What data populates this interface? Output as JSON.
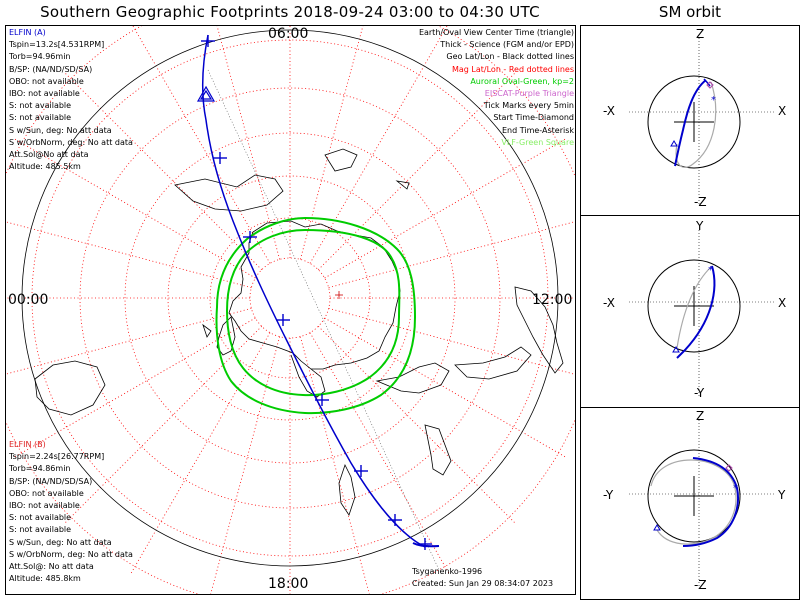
{
  "title": "Southern Geographic Footprints 2018-09-24 03:00 to 04:30 UTC",
  "orbit_title": "SM orbit",
  "hour_labels": {
    "top": "06:00",
    "left": "00:00",
    "right": "12:00",
    "bottom": "18:00"
  },
  "elfin_a": {
    "name": "ELFIN (A)",
    "lines": [
      "Tspin=13.2s[4.531RPM]",
      "Torb=94.96min",
      "B/SP: (NA/ND/SD/SA)",
      "OBO: not available",
      "IBO: not available",
      "S: not available",
      "S: not available",
      "S w/Sun, deg: No att data",
      "S w/OrbNorm, deg: No att data",
      "Att.Sol@No att data",
      "Altitude: 485.5km"
    ]
  },
  "elfin_b": {
    "name": "ELFIN (B)",
    "lines": [
      "Tspin=2.24s[26.77RPM]",
      "Torb=94.86min",
      "B/SP: (NA/ND/SD/SA)",
      "OBO: not available",
      "IBO: not available",
      "S: not available",
      "S: not available",
      "S w/Sun, deg: No att data",
      "S w/OrbNorm, deg: No att data",
      "Att.Sol@: No att data",
      "Altitude: 485.8km"
    ]
  },
  "legend": [
    {
      "text": "Earth/Oval View Center Time (triangle)",
      "color": "#000000"
    },
    {
      "text": "Thick - Science (FGM and/or EPD)",
      "color": "#000000"
    },
    {
      "text": "Geo Lat/Lon - Black dotted lines",
      "color": "#000000"
    },
    {
      "text": "Mag Lat/Lon - Red dotted lines",
      "color": "#ff0000"
    },
    {
      "text": "Auroral Oval-Green, kp=2",
      "color": "#00cc00"
    },
    {
      "text": "EISCAT-Purple Triangle",
      "color": "#cc66cc"
    },
    {
      "text": "Tick Marks every 5min",
      "color": "#000000"
    },
    {
      "text": "Start Time-Diamond",
      "color": "#000000"
    },
    {
      "text": "End Time-Asterisk",
      "color": "#000000"
    },
    {
      "text": "VLF-Green Square",
      "color": "#88ee66"
    }
  ],
  "credits": {
    "author": "Tsyganenko-1996",
    "created": "Created: Sun Jan 29 08:34:07 2023"
  },
  "orbit_panels": [
    {
      "top": "Z",
      "bottom": "-Z",
      "left": "-X",
      "right": "X"
    },
    {
      "top": "Y",
      "bottom": "-Y",
      "left": "-X",
      "right": "X"
    },
    {
      "top": "Z",
      "bottom": "-Z",
      "left": "-Y",
      "right": "Y"
    }
  ],
  "colors": {
    "track": "#0000cc",
    "mag_grid": "#ff0000",
    "oval": "#00cc00",
    "diamond": "#aa44aa"
  }
}
